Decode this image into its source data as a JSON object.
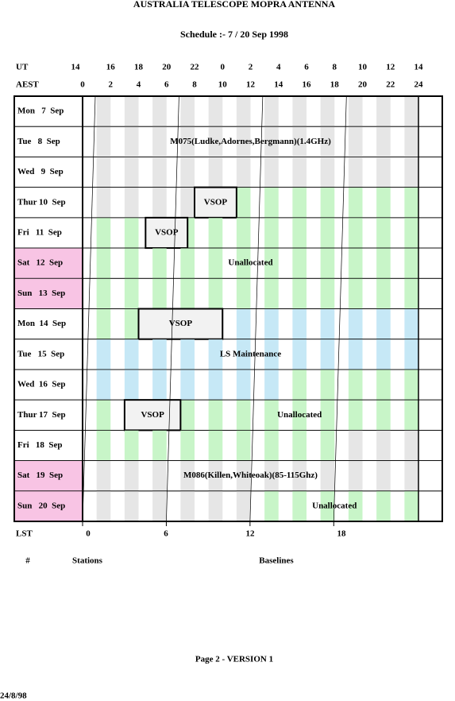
{
  "header": {
    "title": "AUSTRALIA TELESCOPE MOPRA ANTENNA",
    "subtitle": "Schedule :- 7 / 20 Sep 1998"
  },
  "ut_row": {
    "label": "UT",
    "values": [
      "14",
      "16",
      "18",
      "20",
      "22",
      "0",
      "2",
      "4",
      "6",
      "8",
      "10",
      "12",
      "14"
    ]
  },
  "aest_row": {
    "label": "AEST",
    "values": [
      "0",
      "2",
      "4",
      "6",
      "8",
      "10",
      "12",
      "14",
      "16",
      "18",
      "20",
      "22",
      "24"
    ]
  },
  "rows": [
    {
      "day": "Mon   7  Sep",
      "blocks": []
    },
    {
      "day": "Tue   8  Sep",
      "blocks": [
        {
          "label": "M075(Ludke,Adornes,Bergmann)(1.4GHz)"
        }
      ]
    },
    {
      "day": "Wed   9  Sep",
      "blocks": []
    },
    {
      "day": "Thur 10  Sep",
      "blocks": [
        {
          "label": "VSOP"
        }
      ]
    },
    {
      "day": "Fri   11  Sep",
      "blocks": [
        {
          "label": "VSOP"
        }
      ]
    },
    {
      "day": "Sat   12  Sep",
      "blocks": [
        {
          "label": "Unallocated"
        }
      ]
    },
    {
      "day": "Sun   13  Sep",
      "blocks": []
    },
    {
      "day": "Mon  14  Sep",
      "blocks": [
        {
          "label": "VSOP"
        }
      ]
    },
    {
      "day": "Tue   15  Sep",
      "blocks": [
        {
          "label": "LS Maintenance"
        }
      ]
    },
    {
      "day": "Wed  16  Sep",
      "blocks": []
    },
    {
      "day": "Thur 17  Sep",
      "blocks": [
        {
          "label": "VSOP"
        },
        {
          "label": "Unallocated"
        }
      ]
    },
    {
      "day": "Fri   18  Sep",
      "blocks": []
    },
    {
      "day": "Sat   19  Sep",
      "blocks": [
        {
          "label": "M086(Killen,Whiteoak)(85-115Ghz)"
        }
      ]
    },
    {
      "day": "Sun   20  Sep",
      "blocks": [
        {
          "label": "Unallocated"
        }
      ]
    }
  ],
  "lst_row": {
    "label": "LST",
    "values": [
      "0",
      "6",
      "12",
      "18"
    ]
  },
  "columns": {
    "number": "#",
    "stations": "Stations",
    "baselines": "Baselines"
  },
  "footer": {
    "page": "Page 2 - VERSION 1",
    "date": "24/8/98"
  }
}
